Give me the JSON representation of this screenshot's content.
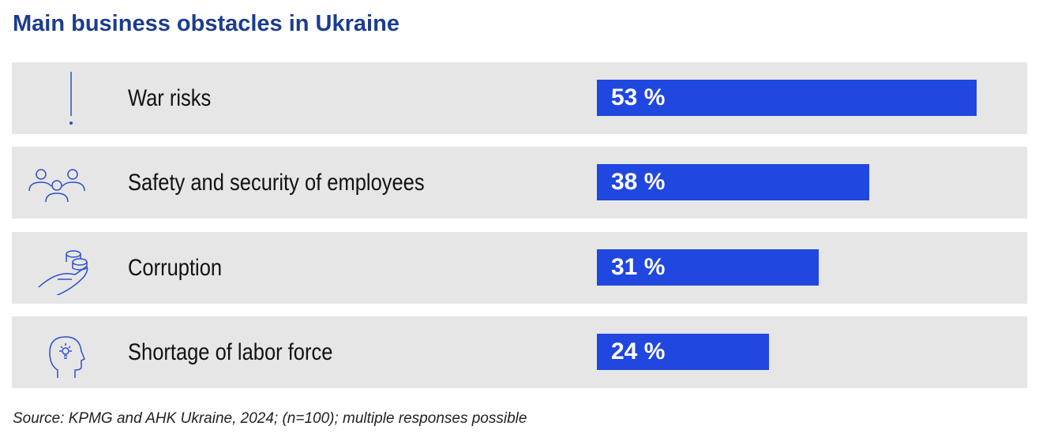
{
  "chart_data": {
    "type": "bar",
    "orientation": "horizontal",
    "title": "Main business obstacles in Ukraine",
    "categories": [
      "War risks",
      "Safety and security of employees",
      "Corruption",
      "Shortage of labor force"
    ],
    "values": [
      53,
      38,
      31,
      24
    ],
    "value_labels": [
      "53 %",
      "38 %",
      "31 %",
      "24 %"
    ],
    "icons": [
      "exclamation-icon",
      "people-group-icon",
      "hand-coins-icon",
      "head-lightbulb-icon"
    ],
    "xlim": [
      0,
      100
    ],
    "grid": false,
    "source": "Source: KPMG and AHK Ukraine, 2024; (n=100); multiple responses possible",
    "colors": {
      "bar": "#2047e0",
      "title": "#1b3c8f",
      "row": "#e6e6e6"
    }
  }
}
